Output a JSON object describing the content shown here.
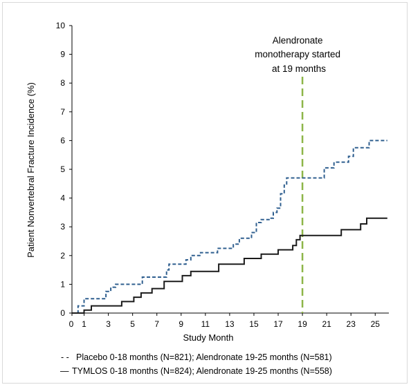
{
  "chart_data": {
    "type": "line",
    "xlabel": "Study Month",
    "ylabel": "Patient Nonvertebral Fracture Incidence (%)",
    "xlim": [
      0,
      26
    ],
    "ylim": [
      0,
      10
    ],
    "x_ticks": [
      "0",
      "1",
      "3",
      "5",
      "7",
      "9",
      "11",
      "13",
      "15",
      "17",
      "19",
      "21",
      "23",
      "25"
    ],
    "y_ticks": [
      "0",
      "1",
      "2",
      "3",
      "4",
      "5",
      "6",
      "7",
      "8",
      "9",
      "10"
    ],
    "grid": false,
    "annotation": {
      "lines": [
        "Alendronate",
        "monotherapy started",
        "at 19 months"
      ],
      "x": 19,
      "color": "#8db548"
    },
    "series": [
      {
        "name": "Placebo 0-18 months (N=821); Alendronate 19-25 months (N=581)",
        "legend_marker": "- -",
        "style": "dashed",
        "color": "#2f5f8f",
        "points": [
          [
            0,
            0
          ],
          [
            0.5,
            0.25
          ],
          [
            1.0,
            0.5
          ],
          [
            2.8,
            0.75
          ],
          [
            3.2,
            0.9
          ],
          [
            3.6,
            1.0
          ],
          [
            5.8,
            1.25
          ],
          [
            7.8,
            1.5
          ],
          [
            8.0,
            1.7
          ],
          [
            9.4,
            1.85
          ],
          [
            9.8,
            2.0
          ],
          [
            10.6,
            2.1
          ],
          [
            12.0,
            2.25
          ],
          [
            13.3,
            2.4
          ],
          [
            13.8,
            2.6
          ],
          [
            14.8,
            2.8
          ],
          [
            15.2,
            3.15
          ],
          [
            15.6,
            3.25
          ],
          [
            16.3,
            3.3
          ],
          [
            16.6,
            3.5
          ],
          [
            16.9,
            3.65
          ],
          [
            17.2,
            4.15
          ],
          [
            17.5,
            4.45
          ],
          [
            17.7,
            4.7
          ],
          [
            20.8,
            5.05
          ],
          [
            21.6,
            5.25
          ],
          [
            22.8,
            5.45
          ],
          [
            23.2,
            5.75
          ],
          [
            24.5,
            6.0
          ],
          [
            26.0,
            6.0
          ]
        ]
      },
      {
        "name": "TYMLOS 0-18 months (N=824); Alendronate 19-25 months (N=558)",
        "legend_marker": "—",
        "style": "solid",
        "color": "#1a1a1a",
        "points": [
          [
            0,
            0
          ],
          [
            1.0,
            0.1
          ],
          [
            1.6,
            0.25
          ],
          [
            4.1,
            0.4
          ],
          [
            5.1,
            0.55
          ],
          [
            5.7,
            0.7
          ],
          [
            6.6,
            0.85
          ],
          [
            7.6,
            1.1
          ],
          [
            9.1,
            1.3
          ],
          [
            9.8,
            1.45
          ],
          [
            12.1,
            1.7
          ],
          [
            14.2,
            1.9
          ],
          [
            15.6,
            2.05
          ],
          [
            17.0,
            2.2
          ],
          [
            18.2,
            2.35
          ],
          [
            18.5,
            2.55
          ],
          [
            18.8,
            2.7
          ],
          [
            22.2,
            2.9
          ],
          [
            23.8,
            3.1
          ],
          [
            24.3,
            3.3
          ],
          [
            26.0,
            3.3
          ]
        ]
      }
    ]
  }
}
